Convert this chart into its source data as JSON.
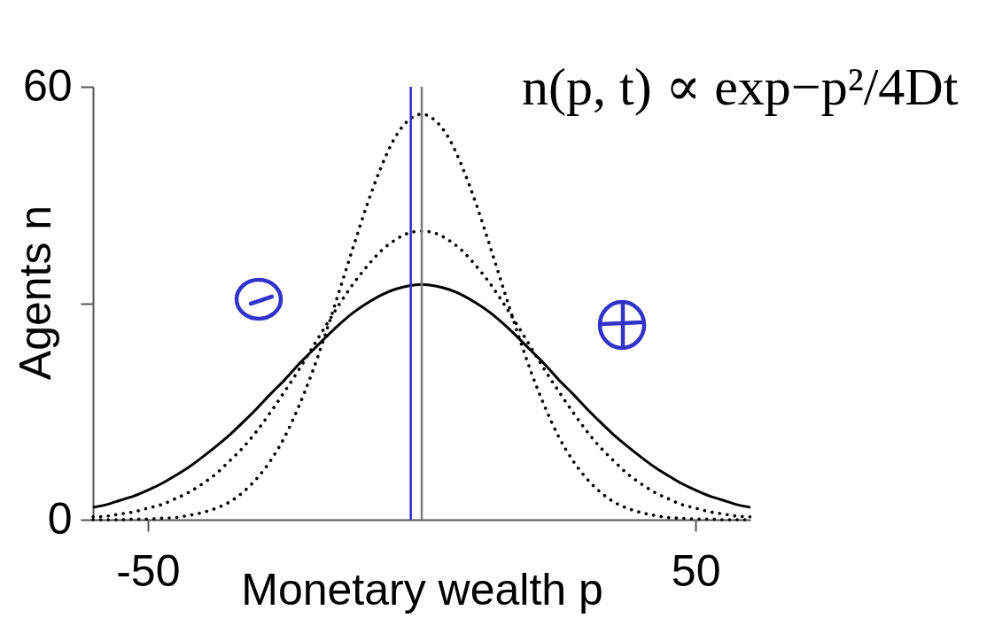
{
  "chart_data": {
    "type": "line",
    "x": [
      -60,
      -57.5,
      -55,
      -52.5,
      -50,
      -47.5,
      -45,
      -42.5,
      -40,
      -37.5,
      -35,
      -32.5,
      -30,
      -27.5,
      -25,
      -22.5,
      -20,
      -17.5,
      -15,
      -12.5,
      -10,
      -7.5,
      -5,
      -2.5,
      0,
      2.5,
      5,
      7.5,
      10,
      12.5,
      15,
      17.5,
      20,
      22.5,
      25,
      27.5,
      30,
      32.5,
      35,
      37.5,
      40,
      42.5,
      45,
      47.5,
      50,
      52.5,
      55,
      57.5,
      60
    ],
    "series": [
      {
        "color": "#000000",
        "line_style": "solid",
        "values": [
          1.7,
          2.1,
          2.7,
          3.3,
          4.1,
          5.0,
          6.1,
          7.3,
          8.7,
          10.2,
          11.8,
          13.6,
          15.5,
          17.5,
          19.4,
          21.5,
          23.4,
          25.3,
          27.1,
          28.7,
          30.0,
          31.1,
          31.9,
          32.4,
          32.6,
          32.4,
          31.9,
          31.1,
          30.0,
          28.7,
          27.1,
          25.3,
          23.4,
          21.5,
          19.4,
          17.5,
          15.5,
          13.6,
          11.8,
          10.2,
          8.7,
          7.3,
          6.1,
          5.0,
          4.1,
          3.3,
          2.7,
          2.1,
          1.7
        ]
      },
      {
        "color": "#000000",
        "line_style": "dotted",
        "values": [
          0.4,
          0.5,
          0.8,
          1.1,
          1.6,
          2.1,
          2.9,
          3.8,
          5.0,
          6.4,
          8.2,
          10.1,
          12.4,
          15.0,
          17.8,
          20.7,
          23.8,
          26.9,
          29.9,
          32.7,
          35.1,
          37.2,
          38.7,
          39.7,
          40.0,
          39.7,
          38.7,
          37.2,
          35.1,
          32.7,
          29.9,
          26.9,
          23.8,
          20.7,
          17.8,
          15.0,
          12.4,
          10.1,
          8.2,
          6.4,
          5.0,
          3.8,
          2.9,
          2.1,
          1.6,
          1.1,
          0.8,
          0.5,
          0.4
        ]
      },
      {
        "color": "#000000",
        "line_style": "dotted",
        "values": [
          0.0,
          0.0,
          0.0,
          0.1,
          0.1,
          0.2,
          0.3,
          0.6,
          1.0,
          1.6,
          2.5,
          3.9,
          5.8,
          8.3,
          11.5,
          15.6,
          20.4,
          25.9,
          31.8,
          37.8,
          43.6,
          48.7,
          52.8,
          55.3,
          56.2,
          55.3,
          52.8,
          48.7,
          43.6,
          37.8,
          31.8,
          25.9,
          20.4,
          15.6,
          11.5,
          8.3,
          5.8,
          3.9,
          2.5,
          1.6,
          1.0,
          0.6,
          0.3,
          0.2,
          0.1,
          0.1,
          0.0,
          0.0,
          0.0
        ]
      }
    ],
    "xlabel": "Monetary wealth p",
    "ylabel": "Agents n",
    "xlim": [
      -60,
      60
    ],
    "xticks": [
      -50,
      50
    ],
    "ylim": [
      0,
      60
    ],
    "yticks": [
      0,
      {
        "value": 30,
        "label": null
      },
      60
    ],
    "grid": false,
    "ref_lines": [
      {
        "axis": "x",
        "value": 0,
        "color": "#808080"
      },
      {
        "axis": "x",
        "value": -2,
        "color": "#3333cc"
      }
    ],
    "annotations": [
      "n(p, t) ∝ exp−p²/4Dt"
    ]
  }
}
